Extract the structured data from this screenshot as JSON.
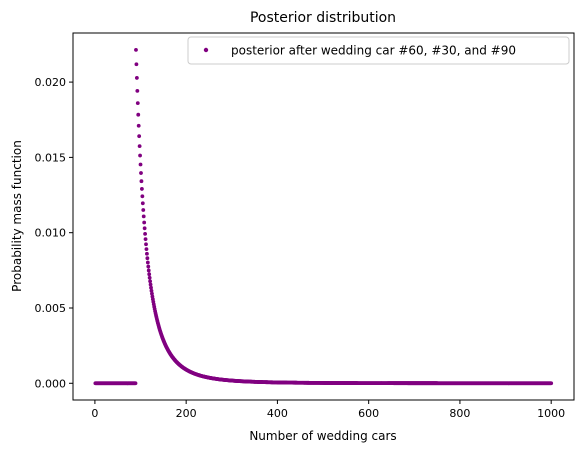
{
  "chart_data": {
    "type": "scatter",
    "title": "Posterior distribution",
    "xlabel": "Number of wedding cars",
    "ylabel": "Probability mass function",
    "xlim": [
      -48,
      1050
    ],
    "ylim": [
      -0.00111,
      0.02326
    ],
    "x_ticks": [
      0,
      200,
      400,
      600,
      800,
      1000
    ],
    "x_tick_labels": [
      "0",
      "200",
      "400",
      "600",
      "800",
      "1000"
    ],
    "y_ticks": [
      0.0,
      0.005,
      0.01,
      0.015,
      0.02
    ],
    "y_tick_labels": [
      "0.000",
      "0.005",
      "0.010",
      "0.015",
      "0.020"
    ],
    "grid": false,
    "legend_position": "top-right",
    "series": [
      {
        "name": "posterior after wedding car #60, #30, and #90",
        "color": "#800080",
        "marker": "circle",
        "model": "pmf(N) = 0 for N < 90; pmf(N) = 0.02214 * (90/N)^4 for 90 <= N <= 1000",
        "x_range": [
          1,
          1000
        ],
        "peak": {
          "x": 90,
          "y": 0.02214
        }
      }
    ]
  }
}
